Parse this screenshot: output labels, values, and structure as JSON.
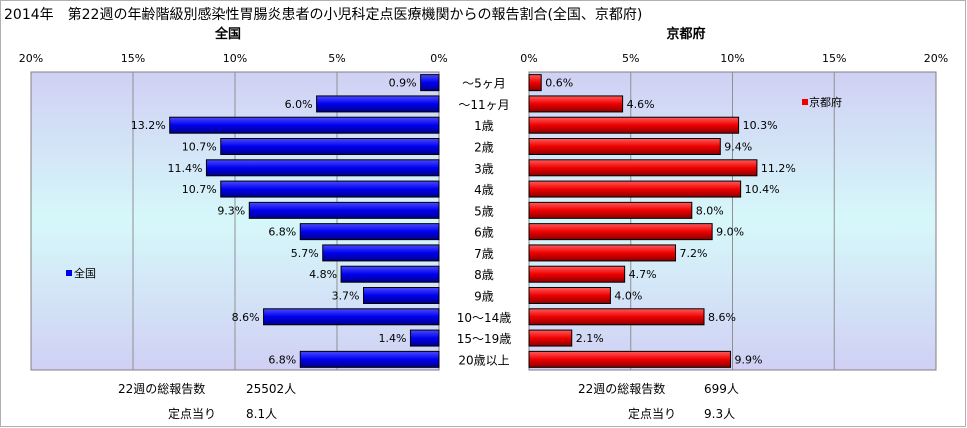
{
  "title": "2014年　第22週の年齢階級別感染性胃腸炎患者の小児科定点医療機関からの報告割合(全国、京都府)",
  "colors": {
    "national": "#0000ee",
    "kyoto": "#ee0000",
    "plot_top": "#d0d0f4",
    "plot_mid": "#d6f8fa",
    "plot_bottom": "#d0d0f4"
  },
  "chart_data": [
    {
      "type": "bar",
      "orientation": "horizontal",
      "direction": "right-to-left",
      "panel_title": "全国",
      "series_name": "全国",
      "legend_position": "left-middle",
      "xlim": [
        0,
        20
      ],
      "x_tick_labels": [
        "20%",
        "15%",
        "10%",
        "5%",
        "0%"
      ],
      "categories": [
        "～5ヶ月",
        "～11ヶ月",
        "1歳",
        "2歳",
        "3歳",
        "4歳",
        "5歳",
        "6歳",
        "7歳",
        "8歳",
        "9歳",
        "10～14歳",
        "15～19歳",
        "20歳以上"
      ],
      "values": [
        0.9,
        6.0,
        13.2,
        10.7,
        11.4,
        10.7,
        9.3,
        6.8,
        5.7,
        4.8,
        3.7,
        8.6,
        1.4,
        6.8
      ],
      "value_labels": [
        "0.9%",
        "6.0%",
        "13.2%",
        "10.7%",
        "11.4%",
        "10.7%",
        "9.3%",
        "6.8%",
        "5.7%",
        "4.8%",
        "3.7%",
        "8.6%",
        "1.4%",
        "6.8%"
      ],
      "grid": "vertical"
    },
    {
      "type": "bar",
      "orientation": "horizontal",
      "direction": "left-to-right",
      "panel_title": "京都府",
      "series_name": "京都府",
      "legend_position": "top-right",
      "xlim": [
        0,
        20
      ],
      "x_tick_labels": [
        "0%",
        "5%",
        "10%",
        "15%",
        "20%"
      ],
      "categories": [
        "～5ヶ月",
        "～11ヶ月",
        "1歳",
        "2歳",
        "3歳",
        "4歳",
        "5歳",
        "6歳",
        "7歳",
        "8歳",
        "9歳",
        "10～14歳",
        "15～19歳",
        "20歳以上"
      ],
      "values": [
        0.6,
        4.6,
        10.3,
        9.4,
        11.2,
        10.4,
        8.0,
        9.0,
        7.2,
        4.7,
        4.0,
        8.6,
        2.1,
        9.9
      ],
      "value_labels": [
        "0.6%",
        "4.6%",
        "10.3%",
        "9.4%",
        "11.2%",
        "10.4%",
        "8.0%",
        "9.0%",
        "7.2%",
        "4.7%",
        "4.0%",
        "8.6%",
        "2.1%",
        "9.9%"
      ],
      "grid": "vertical"
    }
  ],
  "summary": {
    "national": {
      "total_label": "22週の総報告数",
      "total_value": "25502人",
      "per_label": "定点当り",
      "per_value": "8.1人"
    },
    "kyoto": {
      "total_label": "22週の総報告数",
      "total_value": "699人",
      "per_label": "定点当り",
      "per_value": "9.3人"
    }
  }
}
